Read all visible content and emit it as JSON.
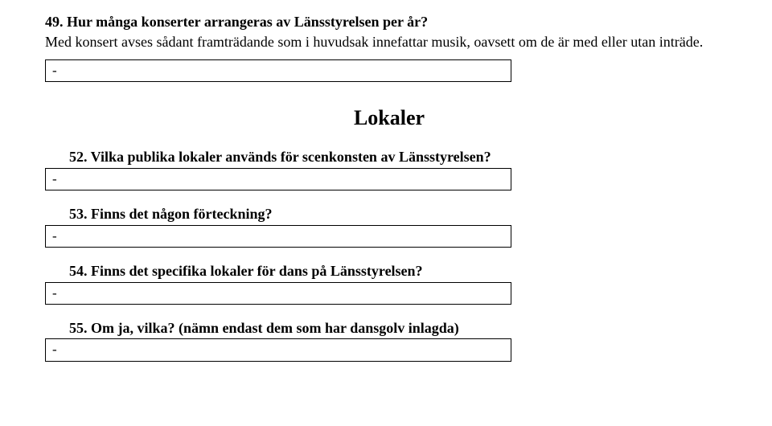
{
  "q49": {
    "title": "49. Hur många konserter arrangeras av Länsstyrelsen per år?",
    "desc": "Med konsert avses sådant framträdande som i huvudsak innefattar musik, oavsett om de är med eller utan inträde."
  },
  "section_heading": "Lokaler",
  "q52": {
    "title": "52. Vilka publika lokaler används för scenkonsten av Länsstyrelsen?"
  },
  "q53": {
    "title": "53. Finns det någon förteckning?"
  },
  "q54": {
    "title": "54. Finns det specifika lokaler för dans på Länsstyrelsen?"
  },
  "q55": {
    "title": "55. Om ja, vilka? (nämn endast dem som har dansgolv inlagda)"
  },
  "dash": "-"
}
